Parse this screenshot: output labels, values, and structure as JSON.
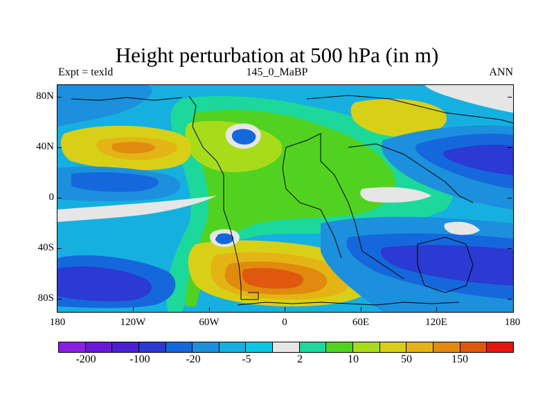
{
  "title": "Height perturbation at 500 hPa (in m)",
  "subtitle": {
    "left": "Expt = texld",
    "center": "145_0_MaBP",
    "right": "ANN"
  },
  "axes": {
    "y_labels": [
      "80N",
      "40N",
      "0",
      "40S",
      "80S"
    ],
    "x_labels": [
      "180",
      "120W",
      "60W",
      "0",
      "60E",
      "120E",
      "180"
    ]
  },
  "colorbar": {
    "colors": [
      "#8a1ee6",
      "#6a16dc",
      "#4a20d2",
      "#2a3ad2",
      "#1468dc",
      "#1c90dc",
      "#16b0e0",
      "#08c8e4",
      "#e6e6e6",
      "#1cd89a",
      "#52d220",
      "#a8dc1a",
      "#d8d016",
      "#e4b414",
      "#e08a0e",
      "#e0580e",
      "#e6140e"
    ],
    "labels": [
      "-200",
      "-100",
      "-20",
      "-5",
      "2",
      "10",
      "50",
      "150"
    ]
  },
  "field": {
    "colors": {
      "strong_negative": "#2a3ad2",
      "moderate_negative": "#1468dc",
      "weak_negative": "#1c90dc",
      "slight_negative": "#16b0e0",
      "near_zero": "#e6e6e6",
      "slight_positive": "#1cd89a",
      "weak_positive": "#52d220",
      "moderate_positive": "#a8dc1a",
      "strong_positive": "#d8d016",
      "high_positive": "#e4b414",
      "very_high_positive": "#e08a0e",
      "extreme_positive": "#e0580e"
    }
  }
}
